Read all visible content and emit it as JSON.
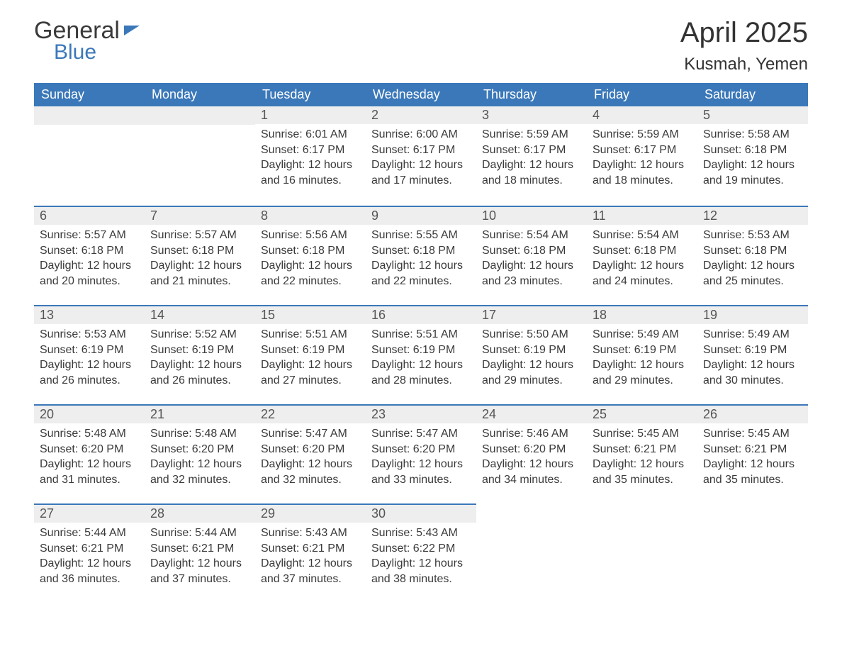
{
  "brand": {
    "word1": "General",
    "word2": "Blue"
  },
  "title": "April 2025",
  "location": "Kusmah, Yemen",
  "colors": {
    "header_bg": "#3b78b9",
    "header_text": "#ffffff",
    "daynum_bg": "#eeeeee",
    "row_border": "#3b78b9",
    "body_text": "#3a3a3a",
    "page_bg": "#ffffff"
  },
  "typography": {
    "month_title_fontsize": 40,
    "location_fontsize": 24,
    "weekday_fontsize": 18,
    "daynum_fontsize": 18,
    "body_fontsize": 16
  },
  "weekdays": [
    "Sunday",
    "Monday",
    "Tuesday",
    "Wednesday",
    "Thursday",
    "Friday",
    "Saturday"
  ],
  "labels": {
    "sunrise": "Sunrise: ",
    "sunset": "Sunset: ",
    "daylight": "Daylight: "
  },
  "weeks": [
    [
      null,
      null,
      {
        "day": "1",
        "sunrise": "6:01 AM",
        "sunset": "6:17 PM",
        "daylight_l1": "12 hours",
        "daylight_l2": "and 16 minutes."
      },
      {
        "day": "2",
        "sunrise": "6:00 AM",
        "sunset": "6:17 PM",
        "daylight_l1": "12 hours",
        "daylight_l2": "and 17 minutes."
      },
      {
        "day": "3",
        "sunrise": "5:59 AM",
        "sunset": "6:17 PM",
        "daylight_l1": "12 hours",
        "daylight_l2": "and 18 minutes."
      },
      {
        "day": "4",
        "sunrise": "5:59 AM",
        "sunset": "6:17 PM",
        "daylight_l1": "12 hours",
        "daylight_l2": "and 18 minutes."
      },
      {
        "day": "5",
        "sunrise": "5:58 AM",
        "sunset": "6:18 PM",
        "daylight_l1": "12 hours",
        "daylight_l2": "and 19 minutes."
      }
    ],
    [
      {
        "day": "6",
        "sunrise": "5:57 AM",
        "sunset": "6:18 PM",
        "daylight_l1": "12 hours",
        "daylight_l2": "and 20 minutes."
      },
      {
        "day": "7",
        "sunrise": "5:57 AM",
        "sunset": "6:18 PM",
        "daylight_l1": "12 hours",
        "daylight_l2": "and 21 minutes."
      },
      {
        "day": "8",
        "sunrise": "5:56 AM",
        "sunset": "6:18 PM",
        "daylight_l1": "12 hours",
        "daylight_l2": "and 22 minutes."
      },
      {
        "day": "9",
        "sunrise": "5:55 AM",
        "sunset": "6:18 PM",
        "daylight_l1": "12 hours",
        "daylight_l2": "and 22 minutes."
      },
      {
        "day": "10",
        "sunrise": "5:54 AM",
        "sunset": "6:18 PM",
        "daylight_l1": "12 hours",
        "daylight_l2": "and 23 minutes."
      },
      {
        "day": "11",
        "sunrise": "5:54 AM",
        "sunset": "6:18 PM",
        "daylight_l1": "12 hours",
        "daylight_l2": "and 24 minutes."
      },
      {
        "day": "12",
        "sunrise": "5:53 AM",
        "sunset": "6:18 PM",
        "daylight_l1": "12 hours",
        "daylight_l2": "and 25 minutes."
      }
    ],
    [
      {
        "day": "13",
        "sunrise": "5:53 AM",
        "sunset": "6:19 PM",
        "daylight_l1": "12 hours",
        "daylight_l2": "and 26 minutes."
      },
      {
        "day": "14",
        "sunrise": "5:52 AM",
        "sunset": "6:19 PM",
        "daylight_l1": "12 hours",
        "daylight_l2": "and 26 minutes."
      },
      {
        "day": "15",
        "sunrise": "5:51 AM",
        "sunset": "6:19 PM",
        "daylight_l1": "12 hours",
        "daylight_l2": "and 27 minutes."
      },
      {
        "day": "16",
        "sunrise": "5:51 AM",
        "sunset": "6:19 PM",
        "daylight_l1": "12 hours",
        "daylight_l2": "and 28 minutes."
      },
      {
        "day": "17",
        "sunrise": "5:50 AM",
        "sunset": "6:19 PM",
        "daylight_l1": "12 hours",
        "daylight_l2": "and 29 minutes."
      },
      {
        "day": "18",
        "sunrise": "5:49 AM",
        "sunset": "6:19 PM",
        "daylight_l1": "12 hours",
        "daylight_l2": "and 29 minutes."
      },
      {
        "day": "19",
        "sunrise": "5:49 AM",
        "sunset": "6:19 PM",
        "daylight_l1": "12 hours",
        "daylight_l2": "and 30 minutes."
      }
    ],
    [
      {
        "day": "20",
        "sunrise": "5:48 AM",
        "sunset": "6:20 PM",
        "daylight_l1": "12 hours",
        "daylight_l2": "and 31 minutes."
      },
      {
        "day": "21",
        "sunrise": "5:48 AM",
        "sunset": "6:20 PM",
        "daylight_l1": "12 hours",
        "daylight_l2": "and 32 minutes."
      },
      {
        "day": "22",
        "sunrise": "5:47 AM",
        "sunset": "6:20 PM",
        "daylight_l1": "12 hours",
        "daylight_l2": "and 32 minutes."
      },
      {
        "day": "23",
        "sunrise": "5:47 AM",
        "sunset": "6:20 PM",
        "daylight_l1": "12 hours",
        "daylight_l2": "and 33 minutes."
      },
      {
        "day": "24",
        "sunrise": "5:46 AM",
        "sunset": "6:20 PM",
        "daylight_l1": "12 hours",
        "daylight_l2": "and 34 minutes."
      },
      {
        "day": "25",
        "sunrise": "5:45 AM",
        "sunset": "6:21 PM",
        "daylight_l1": "12 hours",
        "daylight_l2": "and 35 minutes."
      },
      {
        "day": "26",
        "sunrise": "5:45 AM",
        "sunset": "6:21 PM",
        "daylight_l1": "12 hours",
        "daylight_l2": "and 35 minutes."
      }
    ],
    [
      {
        "day": "27",
        "sunrise": "5:44 AM",
        "sunset": "6:21 PM",
        "daylight_l1": "12 hours",
        "daylight_l2": "and 36 minutes."
      },
      {
        "day": "28",
        "sunrise": "5:44 AM",
        "sunset": "6:21 PM",
        "daylight_l1": "12 hours",
        "daylight_l2": "and 37 minutes."
      },
      {
        "day": "29",
        "sunrise": "5:43 AM",
        "sunset": "6:21 PM",
        "daylight_l1": "12 hours",
        "daylight_l2": "and 37 minutes."
      },
      {
        "day": "30",
        "sunrise": "5:43 AM",
        "sunset": "6:22 PM",
        "daylight_l1": "12 hours",
        "daylight_l2": "and 38 minutes."
      },
      null,
      null,
      null
    ]
  ]
}
